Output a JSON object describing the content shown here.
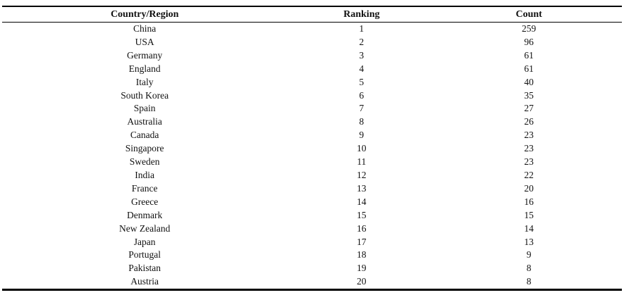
{
  "table": {
    "columns": [
      "Country/Region",
      "Ranking",
      "Count"
    ],
    "rows": [
      {
        "country": "China",
        "ranking": "1",
        "count": "259"
      },
      {
        "country": "USA",
        "ranking": "2",
        "count": "96"
      },
      {
        "country": "Germany",
        "ranking": "3",
        "count": "61"
      },
      {
        "country": "England",
        "ranking": "4",
        "count": "61"
      },
      {
        "country": "Italy",
        "ranking": "5",
        "count": "40"
      },
      {
        "country": "South Korea",
        "ranking": "6",
        "count": "35"
      },
      {
        "country": "Spain",
        "ranking": "7",
        "count": "27"
      },
      {
        "country": "Australia",
        "ranking": "8",
        "count": "26"
      },
      {
        "country": "Canada",
        "ranking": "9",
        "count": "23"
      },
      {
        "country": "Singapore",
        "ranking": "10",
        "count": "23"
      },
      {
        "country": "Sweden",
        "ranking": "11",
        "count": "23"
      },
      {
        "country": "India",
        "ranking": "12",
        "count": "22"
      },
      {
        "country": "France",
        "ranking": "13",
        "count": "20"
      },
      {
        "country": "Greece",
        "ranking": "14",
        "count": "16"
      },
      {
        "country": "Denmark",
        "ranking": "15",
        "count": "15"
      },
      {
        "country": "New Zealand",
        "ranking": "16",
        "count": "14"
      },
      {
        "country": "Japan",
        "ranking": "17",
        "count": "13"
      },
      {
        "country": "Portugal",
        "ranking": "18",
        "count": "9"
      },
      {
        "country": "Pakistan",
        "ranking": "19",
        "count": "8"
      },
      {
        "country": "Austria",
        "ranking": "20",
        "count": "8"
      }
    ]
  },
  "colors": {
    "text": "#111111",
    "rule": "#000000",
    "background": "#ffffff"
  }
}
